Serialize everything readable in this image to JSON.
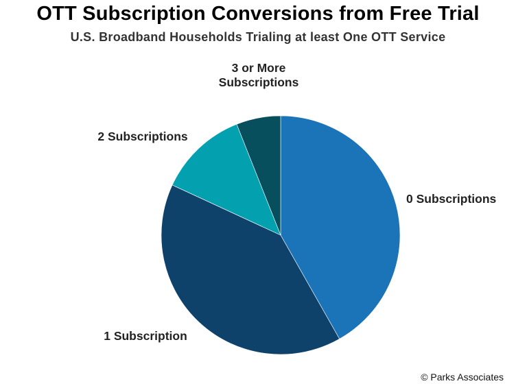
{
  "chart_data": {
    "type": "pie",
    "title": "OTT Subscription Conversions from Free Trial",
    "subtitle": "U.S. Broadband Households Trialing at least One OTT Service",
    "start_angle_deg": 0,
    "direction": "clockwise",
    "slices": [
      {
        "label": [
          "0 Subscriptions"
        ],
        "value": 41.8,
        "color": "#1c74b8"
      },
      {
        "label": [
          "1 Subscription"
        ],
        "value": 40.1,
        "color": "#0f426b"
      },
      {
        "label": [
          "2 Subscriptions"
        ],
        "value": 12.1,
        "color": "#03a0af"
      },
      {
        "label": [
          "3 or More",
          "Subscriptions"
        ],
        "value": 6.0,
        "color": "#074f5c"
      }
    ]
  },
  "credit": "© Parks Associates"
}
